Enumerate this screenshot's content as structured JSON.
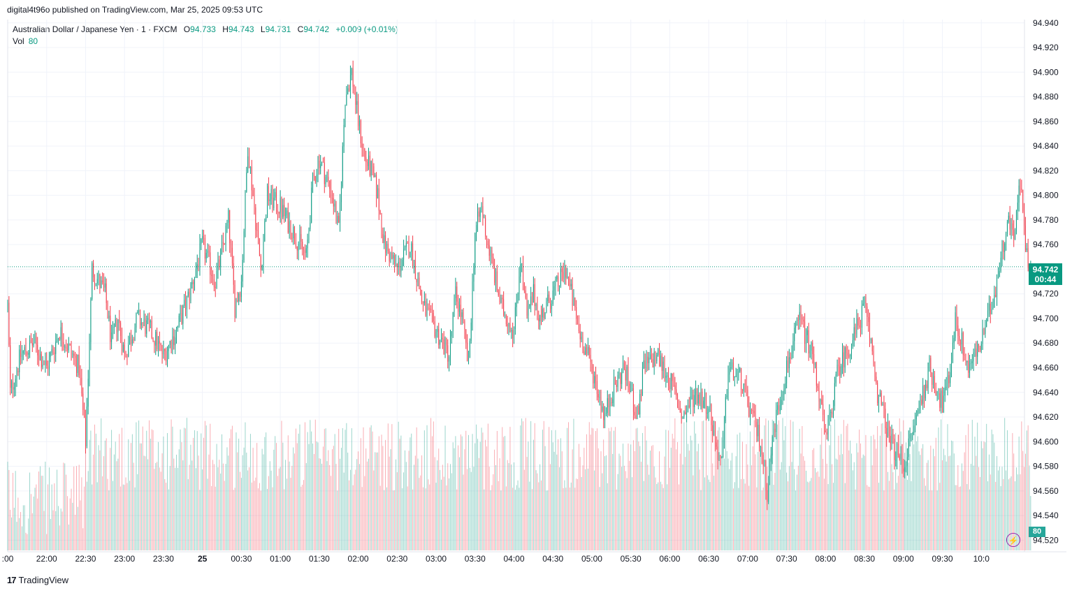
{
  "attribution": "digital4t96o published on TradingView.com, Mar 25, 2025 09:53 UTC",
  "legend": {
    "symbol": "Australian Dollar / Japanese Yen · 1 · FXCM",
    "open_label": "O",
    "open": "94.733",
    "high_label": "H",
    "high": "94.743",
    "low_label": "L",
    "low": "94.731",
    "close_label": "C",
    "close": "94.742",
    "change": "+0.009 (+0.01%)"
  },
  "volume_legend": {
    "label": "Vol",
    "value": "80"
  },
  "last_price": {
    "price": "94.742",
    "countdown": "00:44"
  },
  "volume_tag": "80",
  "footer": {
    "logo": "17",
    "brand": "TradingView"
  },
  "colors": {
    "up": "#089981",
    "down": "#f23645",
    "grid": "#f0f3fa",
    "accent": "#9c27b0"
  },
  "chart_data": {
    "type": "candlestick",
    "title": "Australian Dollar / Japanese Yen · 1 · FXCM",
    "y_ticks": [
      "94.940",
      "94.920",
      "94.900",
      "94.880",
      "94.860",
      "94.840",
      "94.820",
      "94.800",
      "94.780",
      "94.760",
      "94.740",
      "94.720",
      "94.700",
      "94.680",
      "94.660",
      "94.640",
      "94.620",
      "94.600",
      "94.580",
      "94.560",
      "94.540",
      "94.520"
    ],
    "x_ticks": [
      ":00",
      "22:00",
      "22:30",
      "23:00",
      "23:30",
      "25",
      "00:30",
      "01:00",
      "01:30",
      "02:00",
      "02:30",
      "03:00",
      "03:30",
      "04:00",
      "04:30",
      "05:00",
      "05:30",
      "06:00",
      "06:30",
      "07:00",
      "07:30",
      "08:00",
      "08:30",
      "09:00",
      "09:30",
      "10:0"
    ],
    "ylim": [
      94.5117,
      94.9427
    ],
    "grid": true,
    "minutes_per_bar": 1,
    "close_path": [
      {
        "t": "21:00",
        "p": 94.71
      },
      {
        "t": "21:02",
        "p": 94.64
      },
      {
        "t": "21:10",
        "p": 94.67
      },
      {
        "t": "21:20",
        "p": 94.68
      },
      {
        "t": "21:30",
        "p": 94.66
      },
      {
        "t": "21:40",
        "p": 94.69
      },
      {
        "t": "21:55",
        "p": 94.66
      },
      {
        "t": "22:00",
        "p": 94.6
      },
      {
        "t": "22:05",
        "p": 94.74
      },
      {
        "t": "22:15",
        "p": 94.72
      },
      {
        "t": "22:20",
        "p": 94.68
      },
      {
        "t": "22:25",
        "p": 94.7
      },
      {
        "t": "22:30",
        "p": 94.67
      },
      {
        "t": "22:40",
        "p": 94.7
      },
      {
        "t": "22:50",
        "p": 94.69
      },
      {
        "t": "23:00",
        "p": 94.67
      },
      {
        "t": "23:10",
        "p": 94.69
      },
      {
        "t": "23:20",
        "p": 94.72
      },
      {
        "t": "23:30",
        "p": 94.76
      },
      {
        "t": "23:40",
        "p": 94.73
      },
      {
        "t": "23:50",
        "p": 94.78
      },
      {
        "t": "23:55",
        "p": 94.71
      },
      {
        "t": "24:00",
        "p": 94.73
      },
      {
        "t": "24:05",
        "p": 94.84
      },
      {
        "t": "24:10",
        "p": 94.79
      },
      {
        "t": "24:15",
        "p": 94.74
      },
      {
        "t": "24:20",
        "p": 94.8
      },
      {
        "t": "24:30",
        "p": 94.79
      },
      {
        "t": "24:40",
        "p": 94.77
      },
      {
        "t": "24:50",
        "p": 94.75
      },
      {
        "t": "24:55",
        "p": 94.81
      },
      {
        "t": "25:00",
        "p": 94.83
      },
      {
        "t": "25:10",
        "p": 94.8
      },
      {
        "t": "25:15",
        "p": 94.77
      },
      {
        "t": "25:20",
        "p": 94.88
      },
      {
        "t": "25:25",
        "p": 94.9
      },
      {
        "t": "25:30",
        "p": 94.86
      },
      {
        "t": "25:35",
        "p": 94.83
      },
      {
        "t": "25:40",
        "p": 94.82
      },
      {
        "t": "25:45",
        "p": 94.8
      },
      {
        "t": "25:50",
        "p": 94.76
      },
      {
        "t": "26:00",
        "p": 94.74
      },
      {
        "t": "26:10",
        "p": 94.76
      },
      {
        "t": "26:20",
        "p": 94.71
      },
      {
        "t": "26:30",
        "p": 94.69
      },
      {
        "t": "26:40",
        "p": 94.67
      },
      {
        "t": "26:45",
        "p": 94.72
      },
      {
        "t": "26:50",
        "p": 94.7
      },
      {
        "t": "26:55",
        "p": 94.66
      },
      {
        "t": "27:00",
        "p": 94.77
      },
      {
        "t": "27:05",
        "p": 94.79
      },
      {
        "t": "27:10",
        "p": 94.76
      },
      {
        "t": "27:20",
        "p": 94.71
      },
      {
        "t": "27:30",
        "p": 94.69
      },
      {
        "t": "27:35",
        "p": 94.75
      },
      {
        "t": "27:40",
        "p": 94.7
      },
      {
        "t": "27:45",
        "p": 94.72
      },
      {
        "t": "27:50",
        "p": 94.7
      },
      {
        "t": "28:00",
        "p": 94.72
      },
      {
        "t": "28:10",
        "p": 94.74
      },
      {
        "t": "28:20",
        "p": 94.69
      },
      {
        "t": "28:30",
        "p": 94.66
      },
      {
        "t": "28:40",
        "p": 94.62
      },
      {
        "t": "28:45",
        "p": 94.64
      },
      {
        "t": "28:55",
        "p": 94.66
      },
      {
        "t": "29:05",
        "p": 94.62
      },
      {
        "t": "29:10",
        "p": 94.66
      },
      {
        "t": "29:20",
        "p": 94.67
      },
      {
        "t": "29:30",
        "p": 94.65
      },
      {
        "t": "29:40",
        "p": 94.62
      },
      {
        "t": "29:50",
        "p": 94.64
      },
      {
        "t": "30:00",
        "p": 94.63
      },
      {
        "t": "30:05",
        "p": 94.6
      },
      {
        "t": "30:10",
        "p": 94.58
      },
      {
        "t": "30:15",
        "p": 94.66
      },
      {
        "t": "30:25",
        "p": 94.65
      },
      {
        "t": "30:30",
        "p": 94.63
      },
      {
        "t": "30:40",
        "p": 94.6
      },
      {
        "t": "30:45",
        "p": 94.56
      },
      {
        "t": "30:50",
        "p": 94.61
      },
      {
        "t": "31:00",
        "p": 94.66
      },
      {
        "t": "31:10",
        "p": 94.7
      },
      {
        "t": "31:20",
        "p": 94.67
      },
      {
        "t": "31:25",
        "p": 94.64
      },
      {
        "t": "31:30",
        "p": 94.6
      },
      {
        "t": "31:40",
        "p": 94.66
      },
      {
        "t": "31:50",
        "p": 94.68
      },
      {
        "t": "32:00",
        "p": 94.71
      },
      {
        "t": "32:05",
        "p": 94.68
      },
      {
        "t": "32:10",
        "p": 94.64
      },
      {
        "t": "32:20",
        "p": 94.6
      },
      {
        "t": "32:30",
        "p": 94.58
      },
      {
        "t": "32:40",
        "p": 94.62
      },
      {
        "t": "32:50",
        "p": 94.66
      },
      {
        "t": "33:00",
        "p": 94.63
      },
      {
        "t": "33:05",
        "p": 94.65
      },
      {
        "t": "33:10",
        "p": 94.7
      },
      {
        "t": "33:20",
        "p": 94.66
      },
      {
        "t": "33:30",
        "p": 94.68
      },
      {
        "t": "33:40",
        "p": 94.72
      },
      {
        "t": "33:50",
        "p": 94.78
      },
      {
        "t": "33:55",
        "p": 94.77
      },
      {
        "t": "34:00",
        "p": 94.81
      },
      {
        "t": "34:05",
        "p": 94.75
      },
      {
        "t": "34:08",
        "p": 94.742
      }
    ],
    "volume_peak": 195,
    "last_volume": 80
  }
}
